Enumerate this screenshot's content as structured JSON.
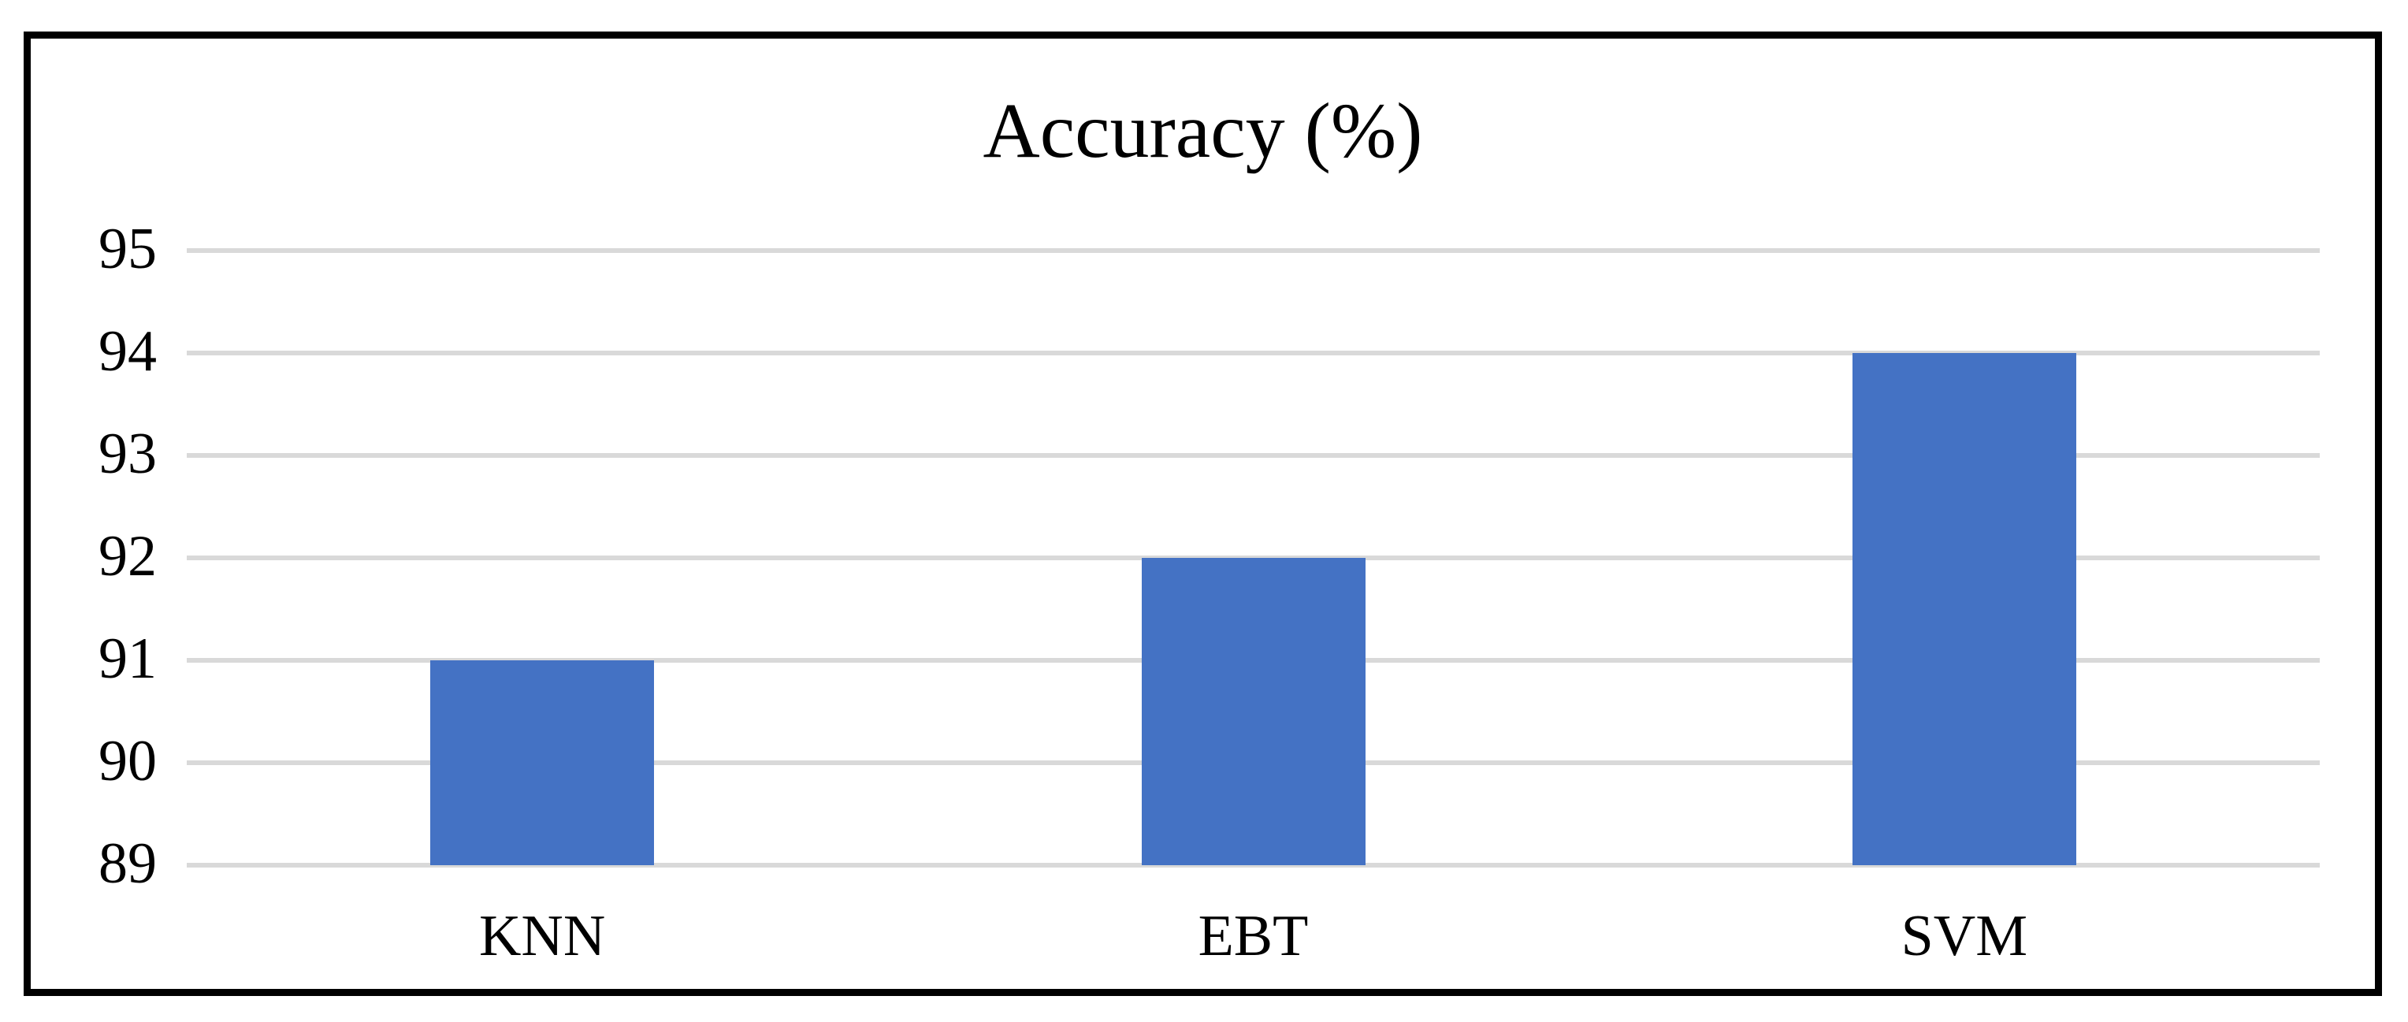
{
  "figure": {
    "title": "Accuracy (%)"
  },
  "chart_data": {
    "type": "bar",
    "title": "Accuracy (%)",
    "categories": [
      "KNN",
      "EBT",
      "SVM"
    ],
    "values": [
      91,
      92,
      94
    ],
    "xlabel": "",
    "ylabel": "",
    "ylim": [
      89,
      95
    ],
    "yticks": [
      89,
      90,
      91,
      92,
      93,
      94,
      95
    ],
    "grid": true,
    "legend": false,
    "bar_color": "#4472C4",
    "gridline_color": "#D9D9D9",
    "frame_border_color": "#000000",
    "text_color": "#000000"
  }
}
